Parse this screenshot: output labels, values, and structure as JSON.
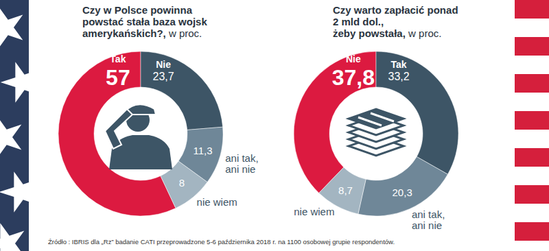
{
  "chart_data": [
    {
      "type": "pie",
      "title": "Czy w Polsce powinna\npowstać stała baza wojsk\namerykańskich?, w proc.",
      "categories": [
        "Tak",
        "Nie",
        "ani tak, ani nie",
        "nie wiem"
      ],
      "values": [
        57,
        23.7,
        11.3,
        8
      ],
      "value_labels": [
        "57",
        "23,7",
        "11,3",
        "8"
      ],
      "colors": [
        "#dc1a40",
        "#3d5566",
        "#6f8798",
        "#a3b5c1"
      ],
      "data_labels": true
    },
    {
      "type": "pie",
      "title": "Czy warto zapłacić ponad\n2 mld dol.,\nżeby powstała, w proc.",
      "categories": [
        "Nie",
        "Tak",
        "ani tak, ani nie",
        "nie wiem"
      ],
      "values": [
        37.8,
        33.2,
        20.3,
        8.7
      ],
      "value_labels": [
        "37,8",
        "33,2",
        "20,3",
        "8,7"
      ],
      "colors": [
        "#dc1a40",
        "#3d5566",
        "#6f8798",
        "#a3b5c1"
      ],
      "data_labels": true
    }
  ],
  "source": "Źródło : IBRIS dla „Rz” badanie CATI przeprowadzone 5-6 października 2018 r. na 1100 osobowej grupie respondentów."
}
